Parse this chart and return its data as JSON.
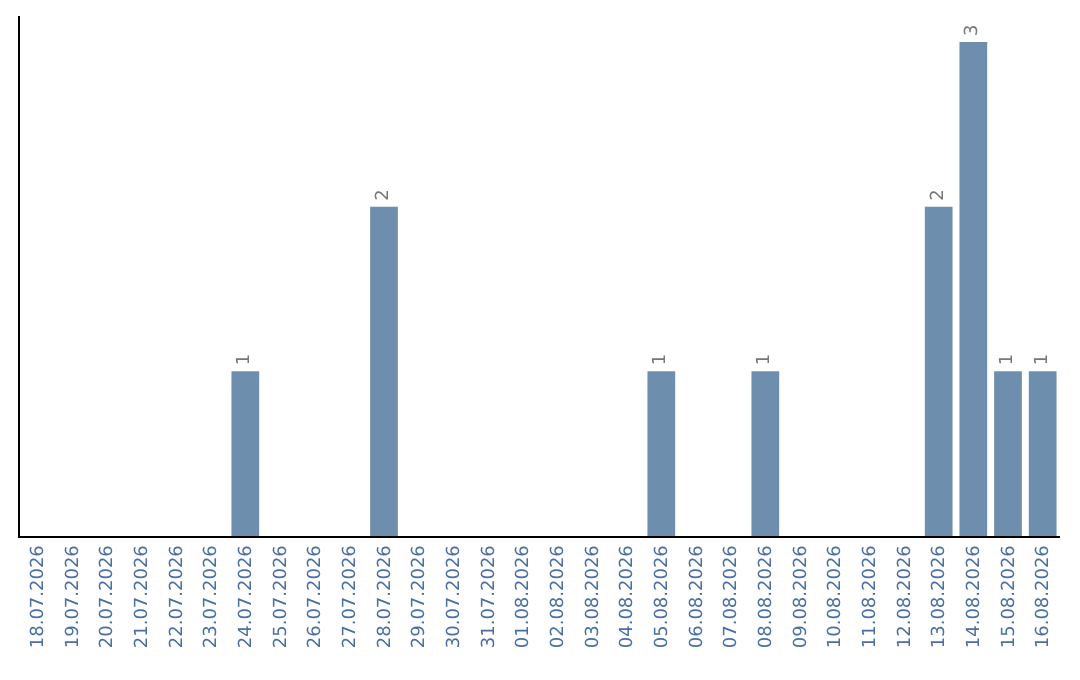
{
  "chart_data": {
    "type": "bar",
    "categories": [
      "18.07.2026",
      "19.07.2026",
      "20.07.2026",
      "21.07.2026",
      "22.07.2026",
      "23.07.2026",
      "24.07.2026",
      "25.07.2026",
      "26.07.2026",
      "27.07.2026",
      "28.07.2026",
      "29.07.2026",
      "30.07.2026",
      "31.07.2026",
      "01.08.2026",
      "02.08.2026",
      "03.08.2026",
      "04.08.2026",
      "05.08.2026",
      "06.08.2026",
      "07.08.2026",
      "08.08.2026",
      "09.08.2026",
      "10.08.2026",
      "11.08.2026",
      "12.08.2026",
      "13.08.2026",
      "14.08.2026",
      "15.08.2026",
      "16.08.2026"
    ],
    "values": [
      0,
      0,
      0,
      0,
      0,
      0,
      1,
      0,
      0,
      0,
      2,
      0,
      0,
      0,
      0,
      0,
      0,
      0,
      1,
      0,
      0,
      1,
      0,
      0,
      0,
      0,
      2,
      3,
      1,
      1
    ],
    "value_labels": [
      null,
      null,
      null,
      null,
      null,
      null,
      "1",
      null,
      null,
      null,
      "2",
      null,
      null,
      null,
      null,
      null,
      null,
      null,
      "1",
      null,
      null,
      "1",
      null,
      null,
      null,
      null,
      "2",
      "3",
      "1",
      "1"
    ],
    "color": "#6e8eae",
    "grid": false,
    "legend": false,
    "tick_labels": "x"
  }
}
